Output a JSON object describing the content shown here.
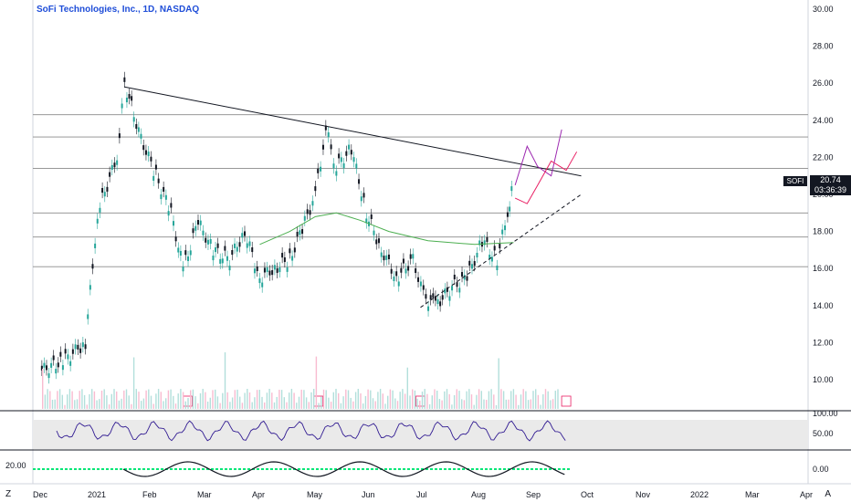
{
  "title": "SoFi Technologies, Inc., 1D, NASDAQ",
  "symbol_tag": "SOFI",
  "last_price": "20.74",
  "countdown": "03:36:39",
  "corner_left": "Z",
  "corner_right": "A",
  "macd_label": "20.00",
  "chart_data": {
    "type": "candlestick",
    "title": "SoFi Technologies, Inc., 1D, NASDAQ",
    "y_ticks": [
      "30.00",
      "28.00",
      "26.00",
      "24.00",
      "22.00",
      "20.00",
      "18.00",
      "16.00",
      "14.00",
      "12.00",
      "10.00"
    ],
    "ylim": [
      8.8,
      30.0
    ],
    "x_ticks": [
      "Dec",
      "2021",
      "Feb",
      "Mar",
      "Apr",
      "May",
      "Jun",
      "Jul",
      "Aug",
      "Sep",
      "Oct",
      "Nov",
      "2022",
      "Mar",
      "Apr"
    ],
    "horizontal_levels": [
      24.3,
      23.1,
      21.4,
      19.0,
      17.7,
      16.1
    ],
    "resistance_line": {
      "from": [
        "2021-01-25",
        25.8
      ],
      "to": [
        "2021-11-25",
        21.0
      ]
    },
    "support_line": {
      "from": [
        "2021-08-10",
        13.9
      ],
      "to": [
        "2021-11-25",
        20.0
      ]
    },
    "price_series": [
      [
        "2020-12-01",
        10.5
      ],
      [
        "2020-12-15",
        11.0
      ],
      [
        "2020-12-30",
        12.0
      ],
      [
        "2021-01-07",
        19.0
      ],
      [
        "2021-01-20",
        22.0
      ],
      [
        "2021-01-25",
        26.0
      ],
      [
        "2021-02-05",
        23.0
      ],
      [
        "2021-02-15",
        21.0
      ],
      [
        "2021-02-25",
        19.0
      ],
      [
        "2021-03-05",
        16.0
      ],
      [
        "2021-03-15",
        18.5
      ],
      [
        "2021-03-25",
        17.0
      ],
      [
        "2021-04-05",
        16.5
      ],
      [
        "2021-04-15",
        18.0
      ],
      [
        "2021-04-25",
        15.5
      ],
      [
        "2021-05-05",
        16.0
      ],
      [
        "2021-05-15",
        16.5
      ],
      [
        "2021-05-25",
        18.5
      ],
      [
        "2021-06-01",
        20.0
      ],
      [
        "2021-06-08",
        23.5
      ],
      [
        "2021-06-15",
        21.5
      ],
      [
        "2021-06-25",
        22.5
      ],
      [
        "2021-07-05",
        19.0
      ],
      [
        "2021-07-15",
        17.0
      ],
      [
        "2021-07-25",
        15.5
      ],
      [
        "2021-08-05",
        16.5
      ],
      [
        "2021-08-12",
        14.5
      ],
      [
        "2021-08-20",
        14.0
      ],
      [
        "2021-08-31",
        15.0
      ],
      [
        "2021-09-10",
        15.5
      ],
      [
        "2021-09-20",
        17.5
      ],
      [
        "2021-09-30",
        16.5
      ],
      [
        "2021-10-07",
        19.0
      ],
      [
        "2021-10-11",
        20.74
      ]
    ],
    "ma_series": [
      [
        "2021-04-25",
        17.3
      ],
      [
        "2021-05-15",
        18.0
      ],
      [
        "2021-06-01",
        18.8
      ],
      [
        "2021-06-15",
        19.0
      ],
      [
        "2021-07-01",
        18.6
      ],
      [
        "2021-07-20",
        18.0
      ],
      [
        "2021-08-15",
        17.5
      ],
      [
        "2021-09-15",
        17.3
      ],
      [
        "2021-10-11",
        17.4
      ]
    ],
    "projection_paths": [
      [
        [
          "2021-10-12",
          20.5
        ],
        [
          "2021-10-20",
          22.6
        ],
        [
          "2021-10-27",
          21.5
        ],
        [
          "2021-11-05",
          21.0
        ],
        [
          "2021-11-12",
          23.5
        ]
      ],
      [
        [
          "2021-10-12",
          19.8
        ],
        [
          "2021-10-20",
          19.5
        ],
        [
          "2021-10-27",
          20.5
        ],
        [
          "2021-11-05",
          21.8
        ],
        [
          "2021-11-15",
          21.3
        ],
        [
          "2021-11-22",
          22.3
        ]
      ]
    ],
    "earnings_markers": [
      "2021-03-08",
      "2021-06-03",
      "2021-08-10",
      "2021-11-15"
    ],
    "rsi_levels": [
      "100.00",
      "50.00"
    ],
    "macd_levels": [
      "0.00"
    ]
  },
  "colors": {
    "candle_up": "#26a69a",
    "candle_down": "#131722",
    "ma": "#4caf50",
    "resistance": "#131722",
    "projection_purple": "#9c27b0",
    "projection_red": "#e91e63",
    "hband_red": "#e53935",
    "hband_gray": "#9e9eb8",
    "rsi_line": "#311b92",
    "macd_zero": "#00e676"
  }
}
